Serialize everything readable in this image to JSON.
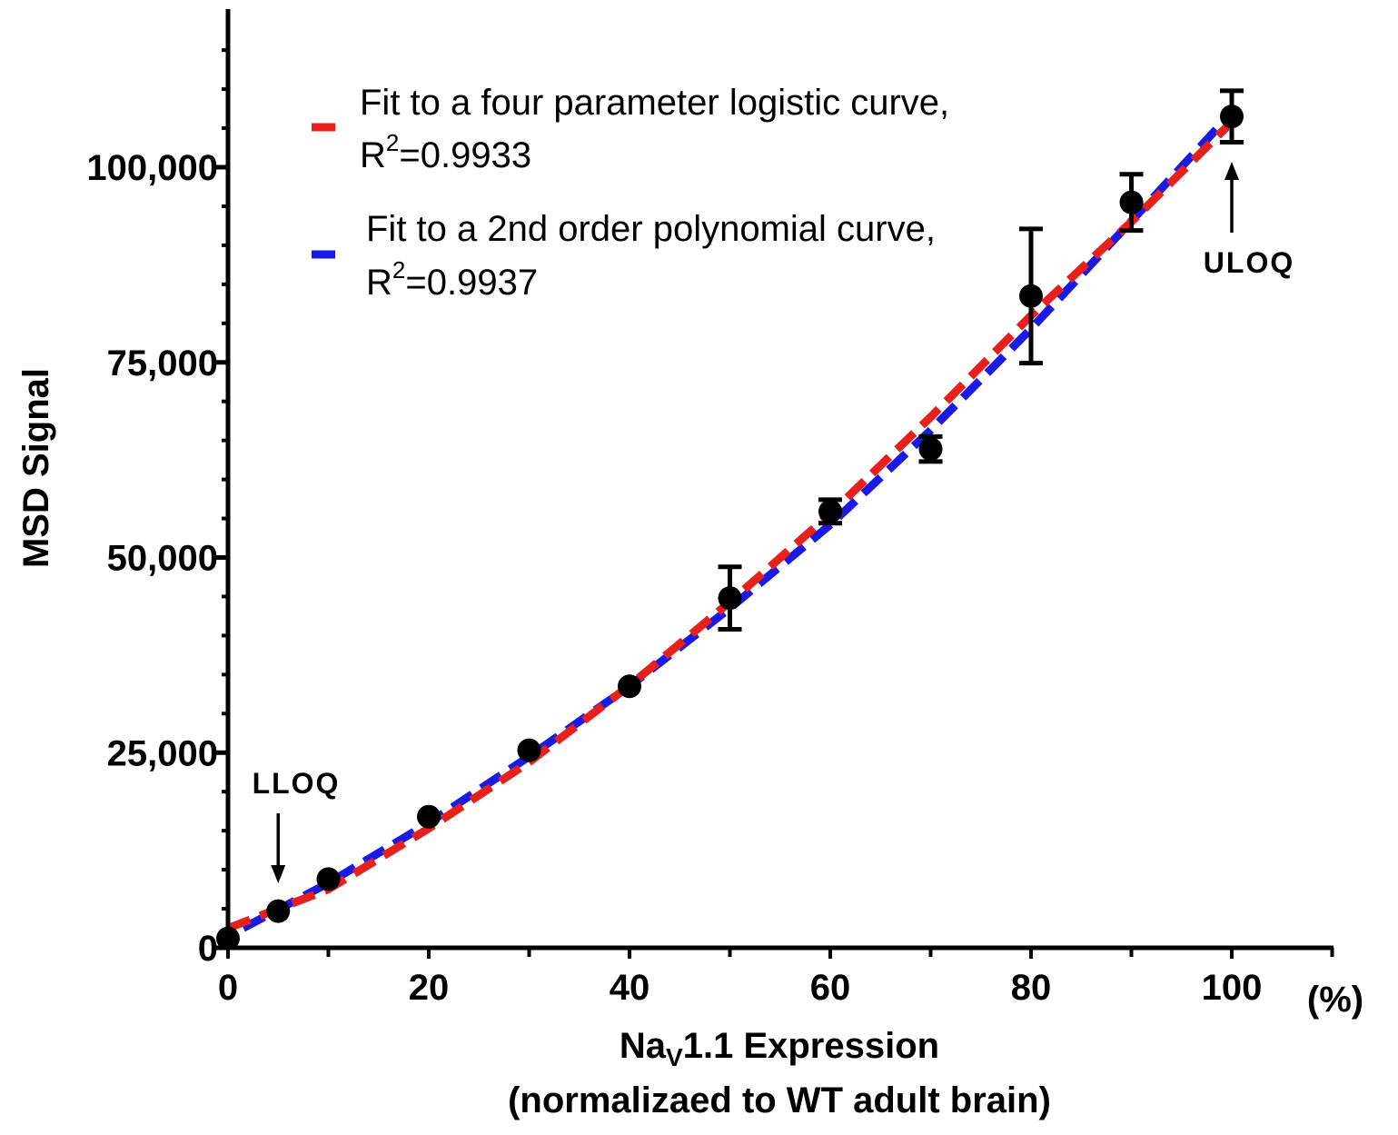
{
  "chart_data": {
    "type": "scatter",
    "title": "",
    "xlabel": {
      "prefix": "Na",
      "subscript": "V",
      "suffix": "1.1 Expression",
      "line2": "(normalizaed to WT adult brain)"
    },
    "ylabel": "MSD Signal",
    "x_unit": "(%)",
    "xlim": [
      0,
      110
    ],
    "ylim": [
      0,
      120000
    ],
    "x_ticks": [
      {
        "value": 0,
        "label": "0"
      },
      {
        "value": 20,
        "label": "20"
      },
      {
        "value": 40,
        "label": "40"
      },
      {
        "value": 60,
        "label": "60"
      },
      {
        "value": 80,
        "label": "80"
      },
      {
        "value": 100,
        "label": "100"
      }
    ],
    "y_ticks": [
      {
        "value": 0,
        "label": "0"
      },
      {
        "value": 25000,
        "label": "25,000"
      },
      {
        "value": 50000,
        "label": "50,000"
      },
      {
        "value": 75000,
        "label": "75,000"
      },
      {
        "value": 100000,
        "label": "100,000"
      }
    ],
    "points": [
      {
        "x": 0,
        "y": 1200,
        "err": 0
      },
      {
        "x": 5,
        "y": 4700,
        "err": 0
      },
      {
        "x": 10,
        "y": 8800,
        "err": 0
      },
      {
        "x": 20,
        "y": 16800,
        "err": 0
      },
      {
        "x": 30,
        "y": 25300,
        "err": 0
      },
      {
        "x": 40,
        "y": 33500,
        "err": 0
      },
      {
        "x": 50,
        "y": 44800,
        "err": 4000
      },
      {
        "x": 60,
        "y": 55900,
        "err": 1500
      },
      {
        "x": 70,
        "y": 63900,
        "err": 1600
      },
      {
        "x": 80,
        "y": 83500,
        "err": 8600
      },
      {
        "x": 90,
        "y": 95500,
        "err": 3600
      },
      {
        "x": 100,
        "y": 106500,
        "err": 3300
      }
    ],
    "fits": [
      {
        "legend_main": "Fit to a four parameter logistic curve,",
        "r2_prefix": "R",
        "r2_sup": "2",
        "r2_value": "=0.9933",
        "color": "#e8201c",
        "x": [
          0,
          10,
          20,
          30,
          40,
          50,
          60,
          70,
          80,
          90,
          100
        ],
        "y": [
          2500,
          7500,
          15300,
          23800,
          33600,
          44300,
          55600,
          68000,
          81000,
          93000,
          105800
        ]
      },
      {
        "legend_main": "Fit to a 2nd order polynomial curve,",
        "r2_prefix": "R",
        "r2_sup": "2",
        "r2_value": "=0.9937",
        "color": "#1a1ae6",
        "x": [
          0,
          10,
          20,
          30,
          40,
          50,
          60,
          70,
          80,
          90,
          100
        ],
        "y": [
          1500,
          8300,
          16000,
          24500,
          33500,
          43500,
          54200,
          66300,
          79300,
          93100,
          107000
        ]
      }
    ],
    "annotations": [
      {
        "label": "LLOQ",
        "x": 5,
        "direction": "down"
      },
      {
        "label": "ULOQ",
        "x": 100,
        "direction": "up"
      }
    ],
    "grid": false,
    "legend_position": "top-left"
  }
}
